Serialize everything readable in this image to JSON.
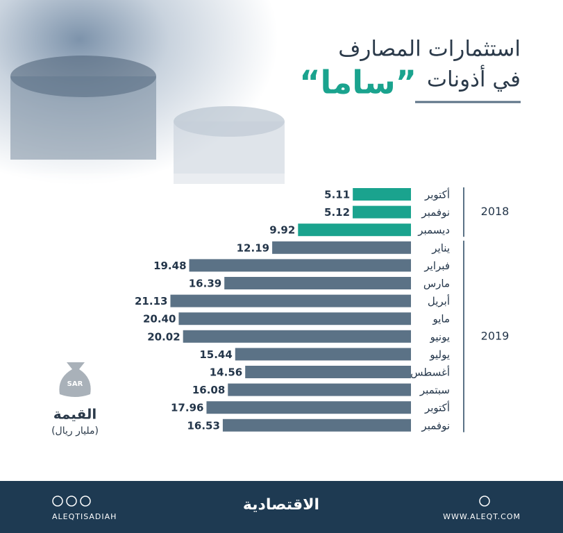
{
  "chart_data": {
    "type": "bar",
    "orientation": "horizontal",
    "title": "استثمارات المصارف",
    "subtitle": "في أذونات",
    "highlight": "“ساما”",
    "groups": [
      {
        "name": "2018",
        "color": "#1aa38e",
        "categories": [
          "أكتوبر",
          "نوفمبر",
          "ديسمبر"
        ],
        "values": [
          5.11,
          5.12,
          9.92
        ],
        "value_labels": [
          "5.11",
          "5.12",
          "9.92"
        ]
      },
      {
        "name": "2019",
        "color": "#5b7286",
        "categories": [
          "يناير",
          "فبراير",
          "مارس",
          "أبريل",
          "مايو",
          "يونيو",
          "يوليو",
          "أغسطس",
          "سبتمبر",
          "أكتوبر",
          "نوفمبر"
        ],
        "values": [
          12.19,
          19.48,
          16.39,
          21.13,
          20.4,
          20.02,
          15.44,
          14.56,
          16.08,
          17.96,
          16.53
        ],
        "value_labels": [
          "12.19",
          "19.48",
          "16.39",
          "21.13",
          "20.40",
          "20.02",
          "15.44",
          "14.56",
          "16.08",
          "17.96",
          "16.53"
        ]
      }
    ],
    "value_title": "القيمة",
    "unit": "(مليار ريال)",
    "icon_label": "SAR"
  },
  "footer": {
    "social": "ALEQTISADIAH",
    "brand": "الاقتصادية",
    "website": "WWW.ALEQT.COM"
  }
}
